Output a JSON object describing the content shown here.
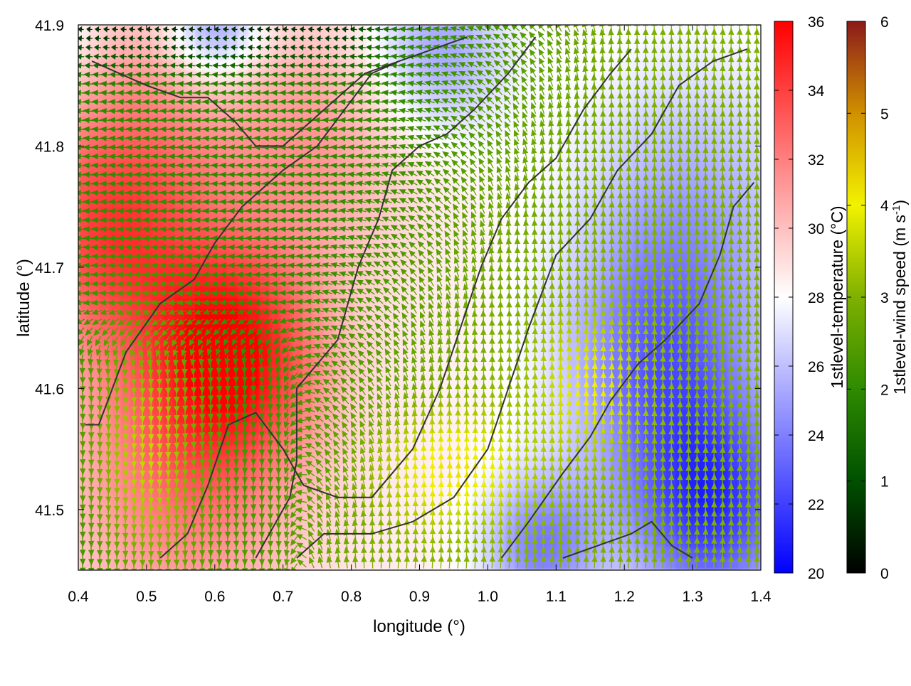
{
  "chart_data": {
    "type": "heatmap",
    "xlabel": "longitude (°)",
    "ylabel": "latitude (°)",
    "xlim": [
      0.4,
      1.4
    ],
    "ylim": [
      41.45,
      41.9
    ],
    "xticks": [
      "0.4",
      "0.5",
      "0.6",
      "0.7",
      "0.8",
      "0.9",
      "1.0",
      "1.1",
      "1.2",
      "1.3",
      "1.4"
    ],
    "yticks": [
      "41.5",
      "41.6",
      "41.7",
      "41.8",
      "41.9"
    ],
    "grid": false,
    "temperature": {
      "label": "1stlevel-temperature (°C)",
      "range": [
        20,
        36
      ],
      "ticks": [
        "20",
        "22",
        "24",
        "26",
        "28",
        "30",
        "32",
        "34",
        "36"
      ],
      "colors": {
        "low": "#0000ff",
        "mid": "#ffffff",
        "high": "#ff0000"
      },
      "blobs": [
        {
          "lon": 0.44,
          "lat": 41.72,
          "value": 33,
          "spread": 0.1
        },
        {
          "lon": 0.63,
          "lat": 41.63,
          "value": 35,
          "spread": 0.09
        },
        {
          "lon": 0.55,
          "lat": 41.52,
          "value": 32,
          "spread": 0.12
        },
        {
          "lon": 0.5,
          "lat": 41.83,
          "value": 31,
          "spread": 0.12
        },
        {
          "lon": 0.75,
          "lat": 41.8,
          "value": 31,
          "spread": 0.1
        },
        {
          "lon": 0.35,
          "lat": 41.9,
          "value": 26,
          "spread": 0.06
        },
        {
          "lon": 0.6,
          "lat": 41.9,
          "value": 24,
          "spread": 0.05
        },
        {
          "lon": 0.93,
          "lat": 41.88,
          "value": 25,
          "spread": 0.07
        },
        {
          "lon": 1.33,
          "lat": 41.5,
          "value": 22,
          "spread": 0.09
        },
        {
          "lon": 1.25,
          "lat": 41.62,
          "value": 24,
          "spread": 0.1
        },
        {
          "lon": 1.3,
          "lat": 41.75,
          "value": 25.5,
          "spread": 0.12
        },
        {
          "lon": 1.08,
          "lat": 41.47,
          "value": 24,
          "spread": 0.06
        }
      ]
    },
    "wind_speed": {
      "label": "1stlevel-wind speed (m s-1)",
      "label_main": "1stlevel-wind speed (m s",
      "label_sup": "-1",
      "label_close": ")",
      "range": [
        0,
        6
      ],
      "ticks": [
        "0",
        "1",
        "2",
        "3",
        "4",
        "5",
        "6"
      ],
      "colors": [
        "#000000",
        "#005000",
        "#2e8b00",
        "#7fb000",
        "#f2f200",
        "#d09000",
        "#8b1a1a"
      ],
      "vectors_grid": {
        "lon_step": 0.0125,
        "lat_step": 0.0075
      }
    },
    "contours": [
      [
        [
          0.41,
          41.57
        ],
        [
          0.43,
          41.57
        ],
        [
          0.47,
          41.63
        ],
        [
          0.52,
          41.67
        ],
        [
          0.57,
          41.69
        ],
        [
          0.6,
          41.72
        ],
        [
          0.64,
          41.75
        ],
        [
          0.7,
          41.78
        ],
        [
          0.75,
          41.8
        ],
        [
          0.79,
          41.83
        ],
        [
          0.83,
          41.86
        ],
        [
          0.87,
          41.87
        ]
      ],
      [
        [
          0.52,
          41.46
        ],
        [
          0.56,
          41.48
        ],
        [
          0.59,
          41.52
        ],
        [
          0.62,
          41.57
        ],
        [
          0.66,
          41.58
        ],
        [
          0.7,
          41.55
        ],
        [
          0.73,
          41.52
        ],
        [
          0.78,
          41.51
        ],
        [
          0.83,
          41.51
        ],
        [
          0.89,
          41.55
        ],
        [
          0.93,
          41.6
        ],
        [
          0.96,
          41.65
        ],
        [
          0.99,
          41.7
        ],
        [
          1.02,
          41.74
        ],
        [
          1.06,
          41.77
        ],
        [
          1.1,
          41.79
        ],
        [
          1.14,
          41.83
        ],
        [
          1.18,
          41.86
        ],
        [
          1.21,
          41.88
        ]
      ],
      [
        [
          0.66,
          41.46
        ],
        [
          0.69,
          41.49
        ],
        [
          0.71,
          41.51
        ],
        [
          0.72,
          41.54
        ],
        [
          0.72,
          41.6
        ],
        [
          0.75,
          41.62
        ],
        [
          0.78,
          41.64
        ],
        [
          0.81,
          41.7
        ],
        [
          0.84,
          41.74
        ],
        [
          0.86,
          41.78
        ],
        [
          0.9,
          41.8
        ],
        [
          0.94,
          41.81
        ],
        [
          0.98,
          41.83
        ],
        [
          1.03,
          41.86
        ],
        [
          1.07,
          41.89
        ]
      ],
      [
        [
          0.72,
          41.46
        ],
        [
          0.76,
          41.48
        ],
        [
          0.83,
          41.48
        ],
        [
          0.89,
          41.49
        ],
        [
          0.95,
          41.51
        ],
        [
          1.0,
          41.55
        ],
        [
          1.03,
          41.6
        ],
        [
          1.06,
          41.65
        ],
        [
          1.1,
          41.71
        ],
        [
          1.15,
          41.74
        ],
        [
          1.19,
          41.78
        ],
        [
          1.24,
          41.81
        ],
        [
          1.28,
          41.85
        ],
        [
          1.33,
          41.87
        ],
        [
          1.38,
          41.88
        ]
      ],
      [
        [
          1.02,
          41.46
        ],
        [
          1.06,
          41.49
        ],
        [
          1.11,
          41.53
        ],
        [
          1.15,
          41.56
        ],
        [
          1.18,
          41.59
        ],
        [
          1.22,
          41.62
        ],
        [
          1.26,
          41.64
        ],
        [
          1.31,
          41.67
        ],
        [
          1.34,
          41.71
        ],
        [
          1.36,
          41.75
        ],
        [
          1.39,
          41.77
        ]
      ],
      [
        [
          1.11,
          41.46
        ],
        [
          1.16,
          41.47
        ],
        [
          1.21,
          41.48
        ],
        [
          1.24,
          41.49
        ],
        [
          1.27,
          41.47
        ],
        [
          1.3,
          41.46
        ]
      ],
      [
        [
          0.42,
          41.87
        ],
        [
          0.46,
          41.86
        ],
        [
          0.5,
          41.85
        ],
        [
          0.55,
          41.84
        ],
        [
          0.59,
          41.84
        ],
        [
          0.63,
          41.82
        ],
        [
          0.66,
          41.8
        ],
        [
          0.7,
          41.8
        ],
        [
          0.74,
          41.82
        ],
        [
          0.78,
          41.84
        ],
        [
          0.82,
          41.86
        ],
        [
          0.87,
          41.87
        ],
        [
          0.92,
          41.88
        ],
        [
          0.97,
          41.89
        ]
      ]
    ]
  }
}
